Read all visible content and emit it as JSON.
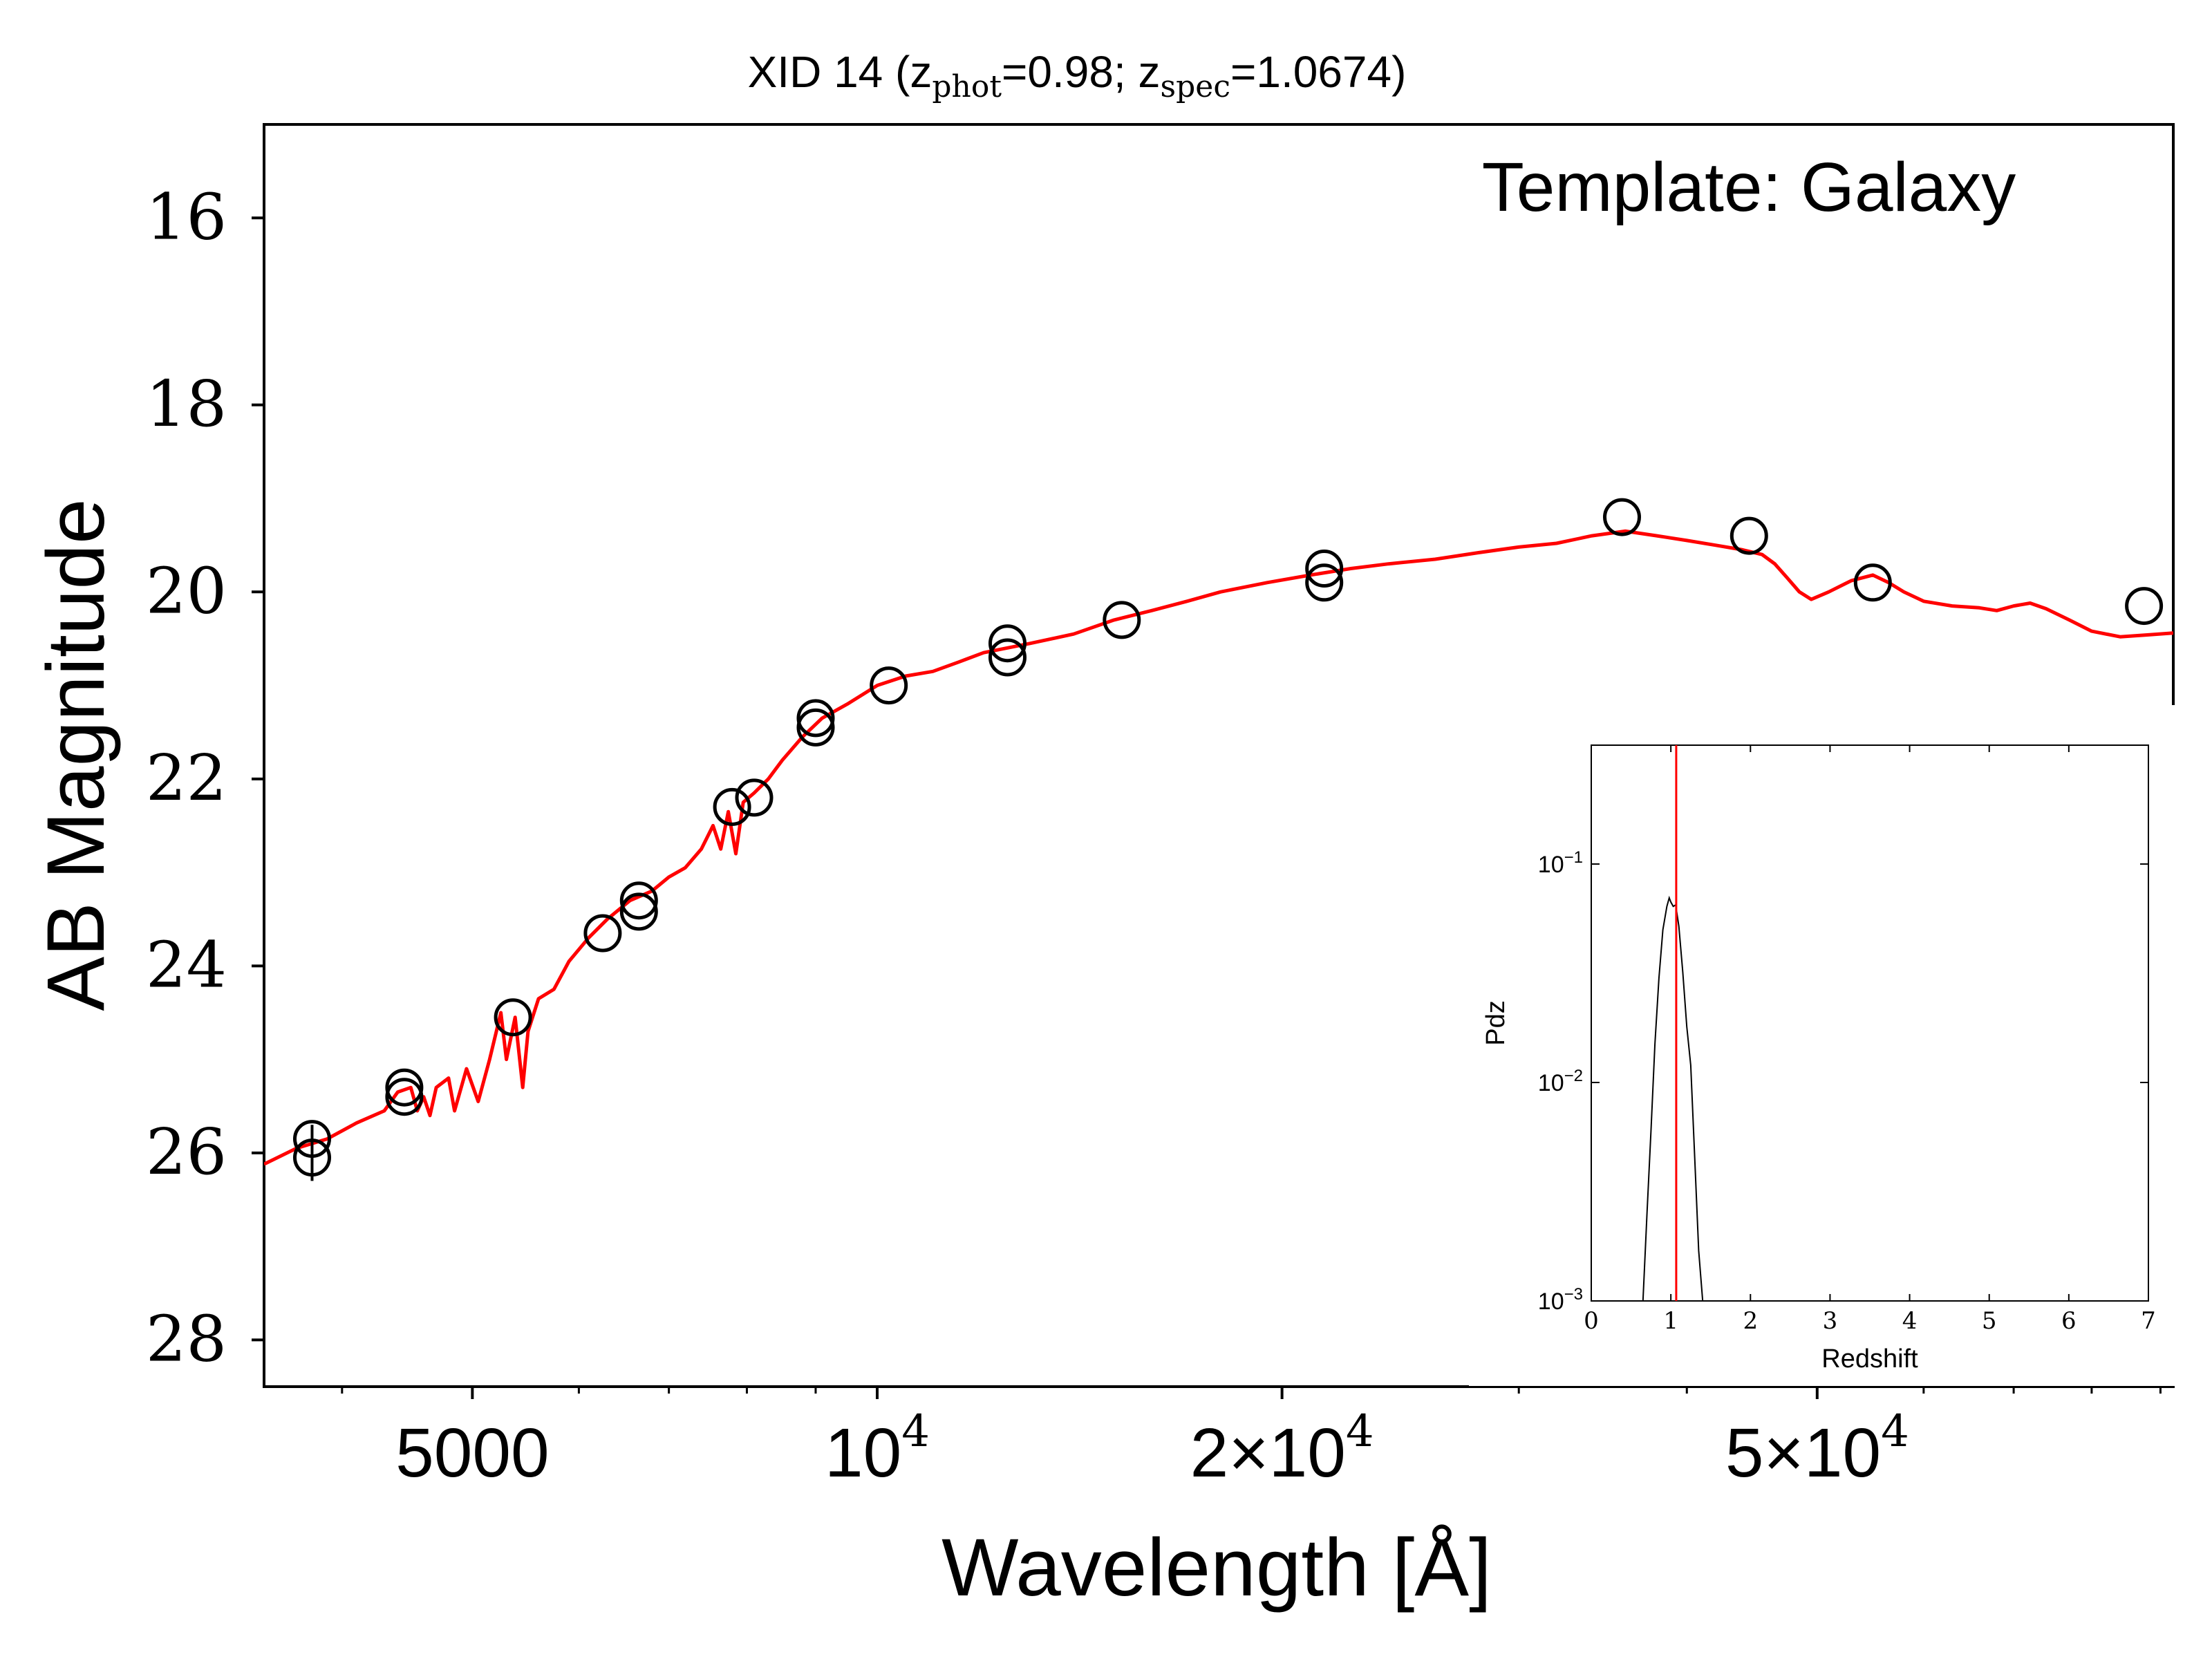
{
  "chart_data": [
    {
      "type": "scatter",
      "title_parts": {
        "prefix": "XID 14 (z",
        "phot_sub": "phot",
        "phot_val": "=0.98; z",
        "spec_sub": "spec",
        "spec_val": "=1.0674)"
      },
      "annotation": "Template: Galaxy",
      "xlabel": "Wavelength [Å]",
      "ylabel": "AB Magnitude",
      "x_scale": "log",
      "xlim": [
        3500,
        92000
      ],
      "ylim": [
        28.5,
        15.0
      ],
      "y_inverted": true,
      "xticks": [
        {
          "value": 5000,
          "label": "5000"
        },
        {
          "value": 10000,
          "base": "10",
          "exp": "4"
        },
        {
          "value": 20000,
          "base": "2×10",
          "exp": "4"
        },
        {
          "value": 50000,
          "base": "5×10",
          "exp": "4"
        }
      ],
      "yticks": [
        {
          "value": 16,
          "label": "16"
        },
        {
          "value": 18,
          "label": "18"
        },
        {
          "value": 20,
          "label": "20"
        },
        {
          "value": 22,
          "label": "22"
        },
        {
          "value": 24,
          "label": "24"
        },
        {
          "value": 26,
          "label": "26"
        },
        {
          "value": 28,
          "label": "28"
        }
      ],
      "series": [
        {
          "kind": "model_line",
          "color": "#ff0000",
          "points": [
            [
              3500,
              26.12
            ],
            [
              3700,
              25.95
            ],
            [
              3900,
              25.85
            ],
            [
              4100,
              25.68
            ],
            [
              4300,
              25.55
            ],
            [
              4400,
              25.35
            ],
            [
              4500,
              25.3
            ],
            [
              4550,
              25.55
            ],
            [
              4600,
              25.4
            ],
            [
              4650,
              25.6
            ],
            [
              4700,
              25.3
            ],
            [
              4800,
              25.2
            ],
            [
              4850,
              25.55
            ],
            [
              4950,
              25.1
            ],
            [
              5050,
              25.45
            ],
            [
              5150,
              25.0
            ],
            [
              5250,
              24.5
            ],
            [
              5300,
              25.0
            ],
            [
              5380,
              24.55
            ],
            [
              5450,
              25.3
            ],
            [
              5500,
              24.7
            ],
            [
              5600,
              24.35
            ],
            [
              5750,
              24.25
            ],
            [
              5900,
              23.95
            ],
            [
              6100,
              23.7
            ],
            [
              6300,
              23.5
            ],
            [
              6550,
              23.3
            ],
            [
              6800,
              23.2
            ],
            [
              7000,
              23.05
            ],
            [
              7200,
              22.95
            ],
            [
              7400,
              22.75
            ],
            [
              7550,
              22.5
            ],
            [
              7650,
              22.75
            ],
            [
              7750,
              22.35
            ],
            [
              7850,
              22.8
            ],
            [
              7950,
              22.25
            ],
            [
              8100,
              22.15
            ],
            [
              8300,
              22.0
            ],
            [
              8500,
              21.8
            ],
            [
              8800,
              21.55
            ],
            [
              9100,
              21.35
            ],
            [
              9500,
              21.2
            ],
            [
              10000,
              21.0
            ],
            [
              10500,
              20.9
            ],
            [
              11000,
              20.85
            ],
            [
              11500,
              20.75
            ],
            [
              12000,
              20.65
            ],
            [
              13000,
              20.55
            ],
            [
              14000,
              20.45
            ],
            [
              15000,
              20.3
            ],
            [
              16000,
              20.2
            ],
            [
              17000,
              20.1
            ],
            [
              18000,
              20.0
            ],
            [
              19500,
              19.9
            ],
            [
              21000,
              19.82
            ],
            [
              22500,
              19.75
            ],
            [
              24000,
              19.7
            ],
            [
              26000,
              19.65
            ],
            [
              28000,
              19.58
            ],
            [
              30000,
              19.52
            ],
            [
              32000,
              19.48
            ],
            [
              34000,
              19.4
            ],
            [
              36000,
              19.35
            ],
            [
              38000,
              19.4
            ],
            [
              40000,
              19.45
            ],
            [
              42000,
              19.5
            ],
            [
              44000,
              19.55
            ],
            [
              45500,
              19.6
            ],
            [
              46500,
              19.7
            ],
            [
              47500,
              19.85
            ],
            [
              48500,
              20.0
            ],
            [
              49500,
              20.08
            ],
            [
              51000,
              20.0
            ],
            [
              53000,
              19.88
            ],
            [
              55000,
              19.82
            ],
            [
              56500,
              19.9
            ],
            [
              58000,
              20.0
            ],
            [
              60000,
              20.1
            ],
            [
              63000,
              20.15
            ],
            [
              66000,
              20.17
            ],
            [
              68000,
              20.2
            ],
            [
              70000,
              20.15
            ],
            [
              72000,
              20.12
            ],
            [
              74000,
              20.18
            ],
            [
              77000,
              20.3
            ],
            [
              80000,
              20.42
            ],
            [
              84000,
              20.48
            ],
            [
              88000,
              20.46
            ],
            [
              92000,
              20.44
            ]
          ]
        },
        {
          "kind": "observed_photometry",
          "color": "#000000",
          "marker": "open-circle",
          "points": [
            [
              3800,
              25.85
            ],
            [
              3800,
              26.05
            ],
            [
              4450,
              25.3
            ],
            [
              4450,
              25.4
            ],
            [
              5360,
              24.55
            ],
            [
              6250,
              23.65
            ],
            [
              6650,
              23.3
            ],
            [
              6650,
              23.42
            ],
            [
              7800,
              22.3
            ],
            [
              8100,
              22.2
            ],
            [
              9000,
              21.35
            ],
            [
              9000,
              21.45
            ],
            [
              10200,
              21.0
            ],
            [
              12500,
              20.55
            ],
            [
              12500,
              20.7
            ],
            [
              15200,
              20.3
            ],
            [
              21500,
              19.75
            ],
            [
              21500,
              19.9
            ],
            [
              35800,
              19.2
            ],
            [
              44500,
              19.4
            ],
            [
              55000,
              19.9
            ],
            [
              87500,
              20.15
            ]
          ],
          "errorbar": {
            "x": 3800,
            "y_low": 25.7,
            "y_high": 26.3
          }
        }
      ]
    },
    {
      "type": "line",
      "xlabel": "Redshift",
      "ylabel": "Pdz",
      "x_scale": "linear",
      "y_scale": "log",
      "xlim": [
        0,
        7
      ],
      "ylim": [
        0.001,
        0.35
      ],
      "xticks": [
        "0",
        "1",
        "2",
        "3",
        "4",
        "5",
        "6",
        "7"
      ],
      "yticks": [
        {
          "value": 0.1,
          "base": "10",
          "exp": "−1"
        },
        {
          "value": 0.01,
          "base": "10",
          "exp": "−2"
        },
        {
          "value": 0.001,
          "base": "10",
          "exp": "−3"
        }
      ],
      "reference_line": {
        "x": 1.0674,
        "color": "#ff0000"
      },
      "series": [
        {
          "color": "#000000",
          "points": [
            [
              0.65,
              0.001
            ],
            [
              0.7,
              0.0025
            ],
            [
              0.75,
              0.006
            ],
            [
              0.8,
              0.015
            ],
            [
              0.85,
              0.03
            ],
            [
              0.9,
              0.05
            ],
            [
              0.95,
              0.064
            ],
            [
              0.98,
              0.07
            ],
            [
              1.0,
              0.067
            ],
            [
              1.03,
              0.064
            ],
            [
              1.06,
              0.065
            ],
            [
              1.1,
              0.052
            ],
            [
              1.15,
              0.032
            ],
            [
              1.2,
              0.018
            ],
            [
              1.25,
              0.012
            ],
            [
              1.3,
              0.0045
            ],
            [
              1.35,
              0.0017
            ],
            [
              1.4,
              0.001
            ]
          ]
        }
      ]
    }
  ]
}
